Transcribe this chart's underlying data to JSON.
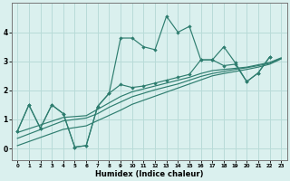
{
  "title": "",
  "xlabel": "Humidex (Indice chaleur)",
  "x_values": [
    0,
    1,
    2,
    3,
    4,
    5,
    6,
    7,
    8,
    9,
    10,
    11,
    12,
    13,
    14,
    15,
    16,
    17,
    18,
    19,
    20,
    21,
    22,
    23
  ],
  "line_jagged": [
    0.6,
    1.5,
    0.7,
    1.5,
    1.2,
    0.05,
    0.1,
    1.45,
    1.9,
    3.8,
    3.8,
    3.5,
    3.4,
    4.55,
    4.0,
    4.2,
    3.05,
    3.05,
    3.5,
    2.95,
    2.3,
    2.6,
    3.15,
    null
  ],
  "line_smooth": [
    0.6,
    1.5,
    0.7,
    1.5,
    1.2,
    0.05,
    0.1,
    1.45,
    1.9,
    2.2,
    2.1,
    2.15,
    2.25,
    2.35,
    2.45,
    2.55,
    3.05,
    3.05,
    2.85,
    2.9,
    2.3,
    2.6,
    3.15,
    null
  ],
  "line_reg1": [
    0.55,
    0.68,
    0.81,
    0.94,
    1.07,
    1.1,
    1.13,
    1.35,
    1.57,
    1.79,
    1.95,
    2.05,
    2.15,
    2.25,
    2.35,
    2.45,
    2.58,
    2.68,
    2.72,
    2.76,
    2.8,
    2.88,
    2.96,
    3.12
  ],
  "line_reg2": [
    0.35,
    0.5,
    0.65,
    0.8,
    0.95,
    1.0,
    1.05,
    1.2,
    1.42,
    1.6,
    1.78,
    1.9,
    2.02,
    2.12,
    2.22,
    2.35,
    2.48,
    2.58,
    2.65,
    2.72,
    2.78,
    2.85,
    2.93,
    3.1
  ],
  "line_reg3": [
    0.1,
    0.24,
    0.38,
    0.52,
    0.66,
    0.72,
    0.78,
    0.96,
    1.14,
    1.32,
    1.52,
    1.66,
    1.8,
    1.94,
    2.08,
    2.22,
    2.36,
    2.5,
    2.58,
    2.65,
    2.72,
    2.8,
    2.9,
    3.08
  ],
  "color": "#2e7d6f",
  "bg_color": "#daf0ee",
  "grid_color": "#b8dbd8",
  "ylim": [
    -0.4,
    5.0
  ],
  "xlim": [
    -0.5,
    23.5
  ]
}
